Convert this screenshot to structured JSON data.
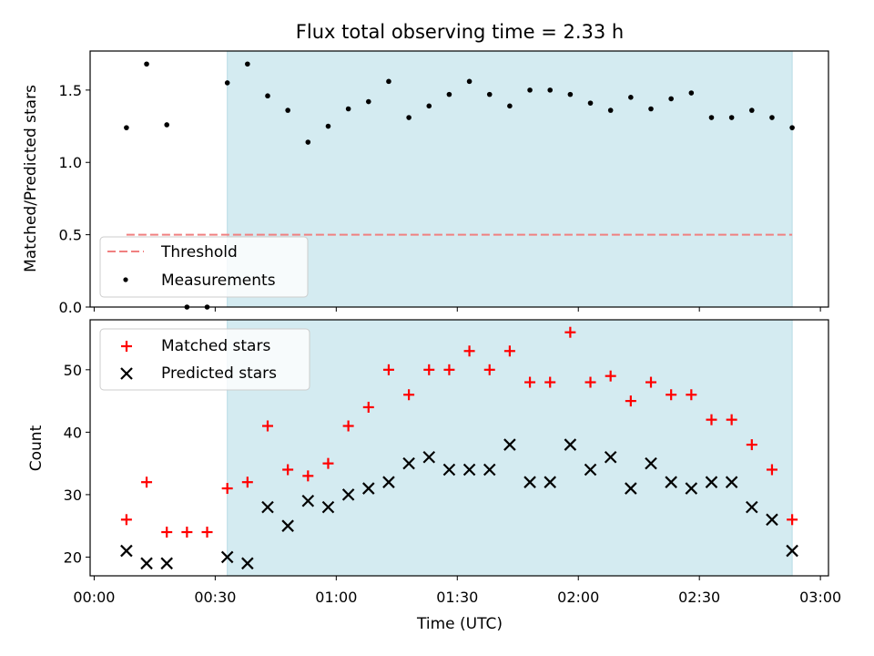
{
  "chart_data": {
    "type": "scatter",
    "title": "Flux total observing time = 2.33 h",
    "xlabel": "Time (UTC)",
    "xlim_minutes": [
      -1,
      182
    ],
    "x_tick_labels": [
      "00:00",
      "00:30",
      "01:00",
      "01:30",
      "02:00",
      "02:30",
      "03:00"
    ],
    "x_ticks_minutes": [
      0,
      30,
      60,
      90,
      120,
      150,
      180
    ],
    "shaded_span_minutes": [
      33,
      173
    ],
    "shaded_color": "#d4ebf1",
    "x_minutes": [
      8,
      13,
      18,
      23,
      28,
      33,
      38,
      43,
      48,
      53,
      58,
      63,
      68,
      73,
      78,
      83,
      88,
      93,
      98,
      103,
      108,
      113,
      118,
      123,
      128,
      133,
      138,
      143,
      148,
      153,
      158,
      163,
      168,
      173
    ],
    "top": {
      "ylabel": "Matched/Predicted stars",
      "ylim": [
        0,
        1.77
      ],
      "y_ticks": [
        "0.0",
        "0.5",
        "1.0",
        "1.5"
      ],
      "series": [
        {
          "name": "Measurements",
          "color": "#000000",
          "marker": "dot",
          "values": [
            1.24,
            1.68,
            1.26,
            0.0,
            0.0,
            1.55,
            1.68,
            1.46,
            1.36,
            1.14,
            1.25,
            1.37,
            1.42,
            1.56,
            1.31,
            1.39,
            1.47,
            1.56,
            1.47,
            1.39,
            1.5,
            1.5,
            1.47,
            1.41,
            1.36,
            1.45,
            1.37,
            1.44,
            1.48,
            1.31,
            1.31,
            1.36,
            1.31,
            1.24
          ]
        }
      ],
      "threshold": {
        "name": "Threshold",
        "value": 0.5,
        "x_range_minutes": [
          8,
          173
        ],
        "color": "#f08080"
      },
      "legend_location": "lower-left"
    },
    "bottom": {
      "ylabel": "Count",
      "ylim": [
        17,
        58
      ],
      "y_ticks": [
        "20",
        "30",
        "40",
        "50"
      ],
      "series": [
        {
          "name": "Matched stars",
          "color": "#ff0000",
          "marker": "plus",
          "values": [
            26,
            32,
            24,
            24,
            24,
            31,
            32,
            41,
            34,
            33,
            35,
            41,
            44,
            50,
            46,
            50,
            50,
            53,
            50,
            53,
            48,
            48,
            56,
            48,
            49,
            45,
            48,
            46,
            46,
            42,
            42,
            38,
            34,
            26
          ]
        },
        {
          "name": "Predicted stars",
          "color": "#000000",
          "marker": "x",
          "values": [
            21,
            19,
            19,
            null,
            null,
            20,
            19,
            28,
            25,
            29,
            28,
            30,
            31,
            32,
            35,
            36,
            34,
            34,
            34,
            38,
            32,
            32,
            38,
            34,
            36,
            31,
            35,
            32,
            31,
            32,
            32,
            28,
            26,
            21
          ]
        }
      ],
      "legend_location": "upper-left"
    }
  }
}
